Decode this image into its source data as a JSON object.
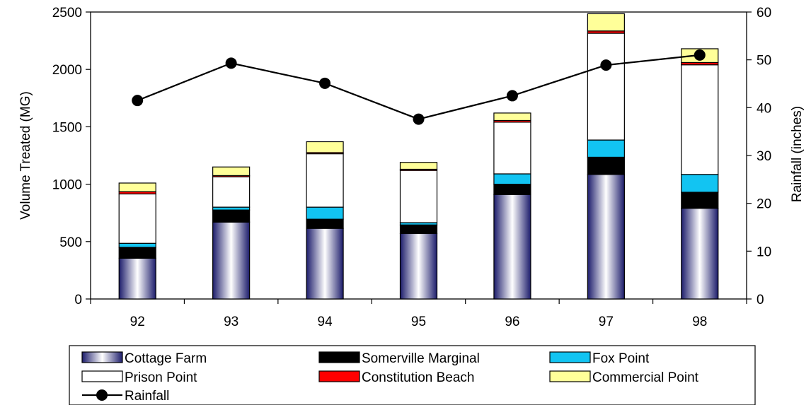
{
  "chart_data": {
    "type": "bar",
    "stacked": true,
    "categories": [
      "92",
      "93",
      "94",
      "95",
      "96",
      "97",
      "98"
    ],
    "ylabel": "Volume Treated (MG)",
    "y2label": "Rainfall (inches)",
    "ylim": [
      0,
      2500
    ],
    "y2lim": [
      0,
      60
    ],
    "yticks": [
      0,
      500,
      1000,
      1500,
      2000,
      2500
    ],
    "y2ticks": [
      0,
      10,
      20,
      30,
      40,
      50,
      60
    ],
    "grid": false,
    "legend_position": "bottom",
    "series": [
      {
        "name": "Cottage Farm",
        "color": "#1c1c6b",
        "values": [
          355,
          670,
          615,
          570,
          910,
          1085,
          790
        ]
      },
      {
        "name": "Somerville Marginal",
        "color": "#000000",
        "values": [
          95,
          105,
          80,
          75,
          90,
          150,
          140
        ]
      },
      {
        "name": "Fox Point",
        "color": "#12c4f2",
        "values": [
          35,
          25,
          105,
          20,
          90,
          150,
          155
        ]
      },
      {
        "name": "Prison Point",
        "color": "#ffffff",
        "values": [
          430,
          265,
          465,
          455,
          450,
          930,
          955
        ]
      },
      {
        "name": "Constitution Beach",
        "color": "#ff0000",
        "values": [
          20,
          10,
          10,
          10,
          15,
          20,
          20
        ]
      },
      {
        "name": "Commercial Point",
        "color": "#ffff99",
        "values": [
          75,
          75,
          95,
          60,
          65,
          150,
          120
        ]
      }
    ],
    "line_series": {
      "name": "Rainfall",
      "axis": "right",
      "color": "#000000",
      "values": [
        41.5,
        49.3,
        45.1,
        37.6,
        42.5,
        48.9,
        51.0
      ]
    }
  }
}
